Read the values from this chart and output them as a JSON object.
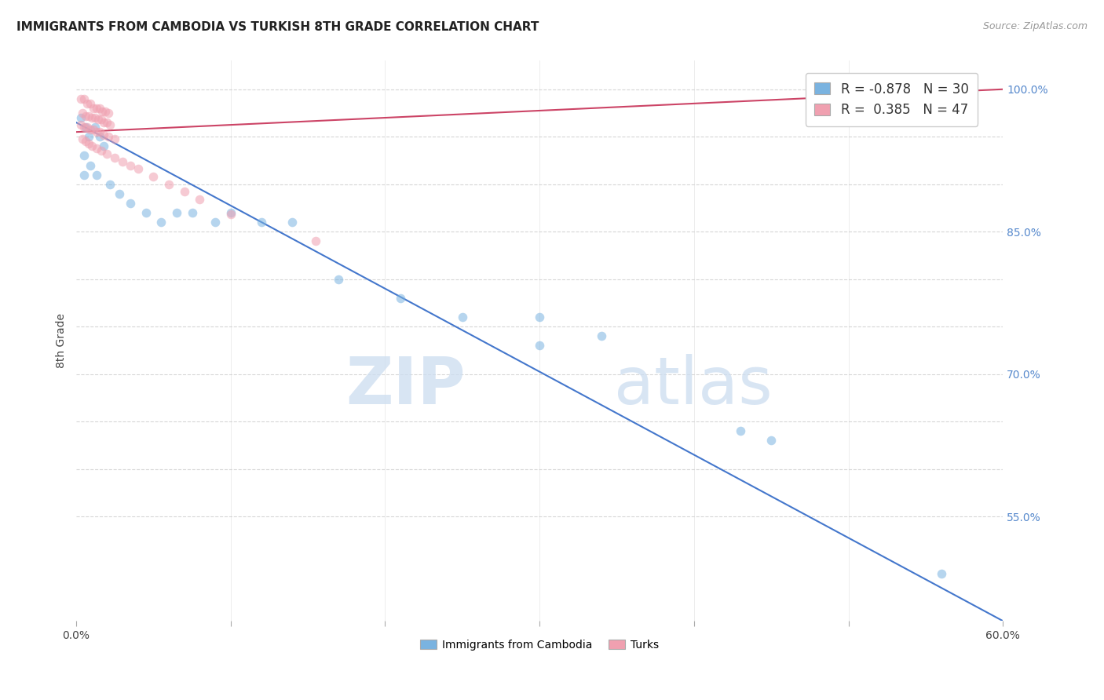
{
  "title": "IMMIGRANTS FROM CAMBODIA VS TURKISH 8TH GRADE CORRELATION CHART",
  "source": "Source: ZipAtlas.com",
  "ylabel": "8th Grade",
  "R_blue": -0.878,
  "N_blue": 30,
  "R_pink": 0.385,
  "N_pink": 47,
  "legend_label_blue": "Immigrants from Cambodia",
  "legend_label_pink": "Turks",
  "xlim": [
    0.0,
    0.6
  ],
  "ylim": [
    0.44,
    1.03
  ],
  "xtick_pos": [
    0.0,
    0.1,
    0.2,
    0.3,
    0.4,
    0.5,
    0.6
  ],
  "xtick_labels": [
    "0.0%",
    "",
    "",
    "",
    "",
    "",
    "60.0%"
  ],
  "ytick_pos": [
    0.55,
    0.6,
    0.65,
    0.7,
    0.75,
    0.8,
    0.85,
    0.9,
    0.95,
    1.0
  ],
  "ytick_labels_right": [
    "55.0%",
    "",
    "",
    "70.0%",
    "",
    "",
    "85.0%",
    "",
    "",
    "100.0%"
  ],
  "grid_color": "#cccccc",
  "watermark_zip": "ZIP",
  "watermark_atlas": "atlas",
  "blue_color": "#7ab3e0",
  "pink_color": "#f0a0b0",
  "blue_line_color": "#4477cc",
  "pink_line_color": "#cc4466",
  "marker_size": 70,
  "marker_alpha": 0.55,
  "blue_scatter_x": [
    0.003,
    0.006,
    0.008,
    0.012,
    0.015,
    0.018,
    0.005,
    0.009,
    0.013,
    0.022,
    0.028,
    0.035,
    0.045,
    0.055,
    0.065,
    0.075,
    0.09,
    0.1,
    0.12,
    0.14,
    0.17,
    0.21,
    0.25,
    0.3,
    0.34,
    0.43,
    0.45,
    0.3,
    0.56,
    0.005
  ],
  "blue_scatter_y": [
    0.97,
    0.96,
    0.95,
    0.96,
    0.95,
    0.94,
    0.93,
    0.92,
    0.91,
    0.9,
    0.89,
    0.88,
    0.87,
    0.86,
    0.87,
    0.87,
    0.86,
    0.87,
    0.86,
    0.86,
    0.8,
    0.78,
    0.76,
    0.76,
    0.74,
    0.64,
    0.63,
    0.73,
    0.49,
    0.91
  ],
  "pink_scatter_x": [
    0.003,
    0.005,
    0.007,
    0.009,
    0.011,
    0.013,
    0.015,
    0.017,
    0.019,
    0.021,
    0.004,
    0.006,
    0.008,
    0.01,
    0.012,
    0.014,
    0.016,
    0.018,
    0.02,
    0.022,
    0.003,
    0.005,
    0.007,
    0.009,
    0.011,
    0.013,
    0.015,
    0.018,
    0.021,
    0.025,
    0.004,
    0.006,
    0.008,
    0.01,
    0.013,
    0.016,
    0.02,
    0.025,
    0.03,
    0.035,
    0.04,
    0.05,
    0.06,
    0.07,
    0.08,
    0.1,
    0.155
  ],
  "pink_scatter_y": [
    0.99,
    0.99,
    0.985,
    0.985,
    0.98,
    0.98,
    0.98,
    0.977,
    0.977,
    0.975,
    0.975,
    0.972,
    0.972,
    0.97,
    0.97,
    0.968,
    0.968,
    0.965,
    0.965,
    0.963,
    0.963,
    0.96,
    0.96,
    0.958,
    0.958,
    0.955,
    0.955,
    0.952,
    0.95,
    0.948,
    0.948,
    0.945,
    0.943,
    0.94,
    0.938,
    0.935,
    0.932,
    0.928,
    0.924,
    0.92,
    0.916,
    0.908,
    0.9,
    0.892,
    0.884,
    0.868,
    0.84
  ],
  "blue_line_x": [
    0.0,
    0.6
  ],
  "blue_line_y": [
    0.965,
    0.44
  ],
  "pink_line_x": [
    0.0,
    0.6
  ],
  "pink_line_y": [
    0.955,
    1.0
  ]
}
